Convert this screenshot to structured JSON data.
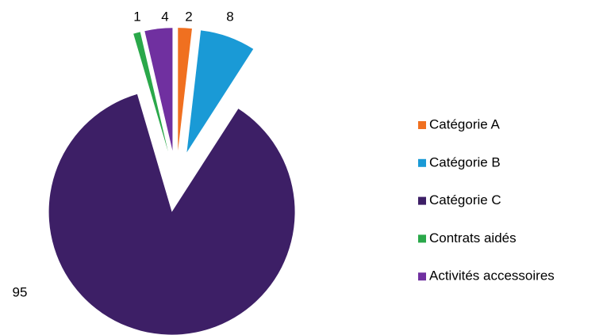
{
  "chart_data": {
    "type": "pie",
    "categories": [
      "Catégorie A",
      "Catégorie B",
      "Catégorie C",
      "Contrats aidés",
      "Activités accessoires"
    ],
    "values": [
      2,
      8,
      95,
      1,
      4
    ],
    "colors": [
      "#f07020",
      "#1a9ad6",
      "#3d1f66",
      "#2aa84a",
      "#7030a0"
    ]
  }
}
